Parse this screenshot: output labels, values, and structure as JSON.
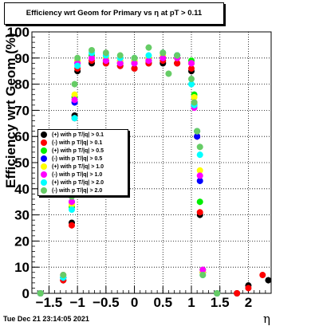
{
  "title": "Efficiency wrt Geom for Primary vs   η at pT > 0.11",
  "datestamp": "Tue Dec 21 23:14:05 2021",
  "chart_data": {
    "type": "scatter",
    "title": "Efficiency wrt Geom for Primary vs   η at pT > 0.11",
    "xlabel": "η",
    "ylabel": "Efficiency wrt Geom (%)",
    "xlim": [
      -1.8,
      2.4
    ],
    "ylim": [
      0,
      100
    ],
    "xticks": [
      -1.5,
      -1,
      -0.5,
      0,
      0.5,
      1,
      1.5,
      2
    ],
    "xtick_labels": [
      "−1.5",
      "−1",
      "−0.5",
      "0",
      "0.5",
      "1",
      "1.5",
      "2"
    ],
    "yticks": [
      0,
      10,
      20,
      30,
      40,
      50,
      60,
      70,
      80,
      90,
      100
    ],
    "ytick_labels": [
      "0",
      "10",
      "20",
      "30",
      "40",
      "50",
      "60",
      "70",
      "80",
      "90",
      "100"
    ],
    "grid": true,
    "legend_position": "left-middle",
    "series": [
      {
        "name": "(+) with p T/|q| > 0.1",
        "color": "#000000",
        "points": [
          [
            -1.65,
            0
          ],
          [
            -1.25,
            5
          ],
          [
            -1.1,
            27
          ],
          [
            -1.05,
            68
          ],
          [
            -1,
            85
          ],
          [
            -0.75,
            88
          ],
          [
            -0.5,
            88
          ],
          [
            -0.25,
            87
          ],
          [
            0,
            86
          ],
          [
            0.25,
            88
          ],
          [
            0.5,
            88
          ],
          [
            0.75,
            88
          ],
          [
            1,
            85
          ],
          [
            1.05,
            72
          ],
          [
            1.1,
            60
          ],
          [
            1.15,
            30
          ],
          [
            1.2,
            8
          ],
          [
            1.45,
            0
          ],
          [
            1.8,
            0
          ],
          [
            2,
            3
          ],
          [
            2.35,
            5
          ]
        ]
      },
      {
        "name": "(-) with p T/|q| > 0.1",
        "color": "#ff0000",
        "points": [
          [
            -1.65,
            0
          ],
          [
            -1.25,
            5
          ],
          [
            -1.1,
            26
          ],
          [
            -1.05,
            67
          ],
          [
            -1,
            86
          ],
          [
            -0.75,
            89
          ],
          [
            -0.5,
            88
          ],
          [
            -0.25,
            87
          ],
          [
            0,
            86
          ],
          [
            0.25,
            88
          ],
          [
            0.5,
            89
          ],
          [
            0.75,
            88
          ],
          [
            1,
            86
          ],
          [
            1.05,
            73
          ],
          [
            1.1,
            60
          ],
          [
            1.15,
            31
          ],
          [
            1.2,
            8
          ],
          [
            1.45,
            0
          ],
          [
            1.8,
            0
          ],
          [
            2,
            2
          ],
          [
            2.25,
            7
          ]
        ]
      },
      {
        "name": "(+) with p T/|q| > 0.5",
        "color": "#00ee00",
        "points": [
          [
            -1.65,
            0
          ],
          [
            -1.25,
            6
          ],
          [
            -1.1,
            33
          ],
          [
            -1.05,
            75
          ],
          [
            -1,
            89
          ],
          [
            -0.75,
            91
          ],
          [
            -0.5,
            90
          ],
          [
            -0.25,
            89
          ],
          [
            0,
            89
          ],
          [
            0.25,
            90
          ],
          [
            0.5,
            90
          ],
          [
            0.75,
            91
          ],
          [
            1,
            89
          ],
          [
            1.05,
            76
          ],
          [
            1.1,
            62
          ],
          [
            1.15,
            35
          ],
          [
            1.2,
            9
          ],
          [
            1.45,
            0
          ]
        ]
      },
      {
        "name": "(-) with p T/|q| > 0.5",
        "color": "#0000ff",
        "points": [
          [
            -1.65,
            0
          ],
          [
            -1.25,
            6
          ],
          [
            -1.1,
            35
          ],
          [
            -1.05,
            73
          ],
          [
            -1,
            88
          ],
          [
            -0.75,
            90
          ],
          [
            -0.5,
            89
          ],
          [
            -0.25,
            88
          ],
          [
            0,
            88
          ],
          [
            0.25,
            89
          ],
          [
            0.5,
            90
          ],
          [
            0.75,
            91
          ],
          [
            1,
            88
          ],
          [
            1.05,
            72
          ],
          [
            1.1,
            60
          ],
          [
            1.15,
            43
          ],
          [
            1.2,
            8
          ],
          [
            1.45,
            0
          ]
        ]
      },
      {
        "name": "(+) with p T/|q| > 1.0",
        "color": "#ffff00",
        "points": [
          [
            -1.65,
            0
          ],
          [
            -1.25,
            7
          ],
          [
            -1.1,
            34
          ],
          [
            -1.05,
            76
          ],
          [
            -1,
            89
          ],
          [
            -0.75,
            90
          ],
          [
            -0.5,
            90
          ],
          [
            -0.25,
            89
          ],
          [
            0,
            89
          ],
          [
            0.25,
            90
          ],
          [
            0.5,
            91
          ],
          [
            0.75,
            90
          ],
          [
            1,
            88
          ],
          [
            1.05,
            75
          ],
          [
            1.1,
            62
          ],
          [
            1.15,
            47
          ],
          [
            1.2,
            8
          ],
          [
            1.45,
            0
          ]
        ]
      },
      {
        "name": "(-) with p T/|q| > 1.0",
        "color": "#ff00ff",
        "points": [
          [
            -1.65,
            0
          ],
          [
            -1.25,
            7
          ],
          [
            -1.1,
            35
          ],
          [
            -1.05,
            74
          ],
          [
            -1,
            88
          ],
          [
            -0.75,
            90
          ],
          [
            -0.5,
            89
          ],
          [
            -0.25,
            88
          ],
          [
            0,
            88
          ],
          [
            0.25,
            89
          ],
          [
            0.5,
            90
          ],
          [
            0.75,
            90
          ],
          [
            1,
            88
          ],
          [
            1.05,
            71
          ],
          [
            1.1,
            62
          ],
          [
            1.15,
            45
          ],
          [
            1.2,
            9
          ],
          [
            1.45,
            0
          ]
        ]
      },
      {
        "name": "(+) with p T/|q| > 2.0",
        "color": "#00ffff",
        "points": [
          [
            -1.65,
            0
          ],
          [
            -1.25,
            6
          ],
          [
            -1.1,
            32
          ],
          [
            -1.05,
            67
          ],
          [
            -1,
            87
          ],
          [
            -0.75,
            92
          ],
          [
            -0.5,
            91
          ],
          [
            -0.25,
            90
          ],
          [
            0,
            90
          ],
          [
            0.25,
            91
          ],
          [
            0.5,
            92
          ],
          [
            0.75,
            91
          ],
          [
            1,
            80
          ],
          [
            1.05,
            72
          ],
          [
            1.1,
            62
          ],
          [
            1.15,
            53
          ],
          [
            1.2,
            7
          ],
          [
            1.45,
            0
          ]
        ]
      },
      {
        "name": "(-) with p T/|q| > 2.0",
        "color": "#66cc66",
        "points": [
          [
            -1.65,
            0
          ],
          [
            -1.25,
            7
          ],
          [
            -1.1,
            37
          ],
          [
            -1.05,
            80
          ],
          [
            -1,
            90
          ],
          [
            -0.75,
            93
          ],
          [
            -0.5,
            92
          ],
          [
            -0.25,
            91
          ],
          [
            0,
            90
          ],
          [
            0.25,
            94
          ],
          [
            0.5,
            92
          ],
          [
            0.6,
            84
          ],
          [
            0.75,
            91
          ],
          [
            1,
            82
          ],
          [
            1.05,
            73
          ],
          [
            1.1,
            62
          ],
          [
            1.15,
            56
          ],
          [
            1.2,
            7
          ],
          [
            1.45,
            0
          ]
        ]
      }
    ]
  }
}
